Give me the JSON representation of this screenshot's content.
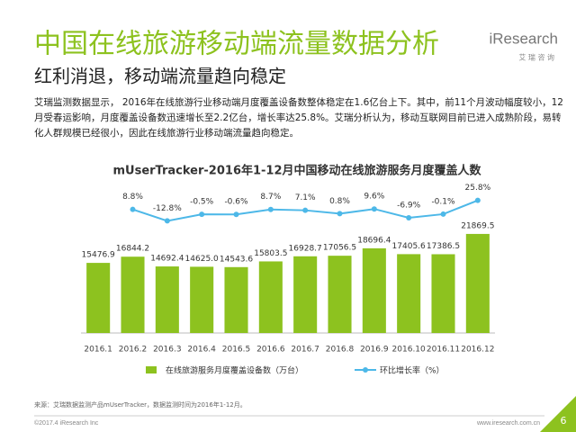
{
  "slide": {
    "title": "中国在线旅游移动端流量数据分析",
    "subtitle": "红利消退，移动端流量趋向稳定",
    "logo": "iResearch",
    "logo_sub": "艾 瑞 咨 询",
    "paragraph": "艾瑞监测数据显示， 2016年在线旅游行业移动端月度覆盖设备数整体稳定在1.6亿台上下。其中，前11个月波动幅度较小，12月受春运影响，月度覆盖设备数迅速增长至2.2亿台，增长率达25.8%。艾瑞分析认为，移动互联网目前已进入成熟阶段，易转化人群规模已经很小，因此在线旅游行业移动端流量趋向稳定。",
    "source": "来源：艾瑞数据监测产品mUserTracker，数据监测时间为2016年1-12月。",
    "copyright": "©2017.4 iResearch Inc",
    "website": "www.iresearch.com.cn",
    "page": "6"
  },
  "chart_data": {
    "type": "bar",
    "title": "mUserTracker-2016年1-12月中国移动在线旅游服务月度覆盖人数",
    "categories": [
      "2016.1",
      "2016.2",
      "2016.3",
      "2016.4",
      "2016.5",
      "2016.6",
      "2016.7",
      "2016.8",
      "2016.9",
      "2016.10",
      "2016.11",
      "2016.12"
    ],
    "series": [
      {
        "name": "在线旅游服务月度覆盖设备数（万台）",
        "type": "bar",
        "color": "#8dc21f",
        "values": [
          15476.9,
          16844.2,
          14692.4,
          14625.0,
          14543.6,
          15803.5,
          16928.7,
          17056.5,
          18696.4,
          17405.6,
          17386.5,
          21869.5
        ],
        "value_labels": [
          "15476.9",
          "16844.2",
          "14692.4",
          "14625.0",
          "14543.6",
          "15803.5",
          "16928.7",
          "17056.5",
          "18696.4",
          "17405.6",
          "17386.5",
          "21869.5"
        ]
      },
      {
        "name": "环比增长率（%）",
        "type": "line",
        "axis": "y2",
        "color": "#4db8e8",
        "values": [
          null,
          8.8,
          -12.8,
          -0.5,
          -0.6,
          8.7,
          7.1,
          0.8,
          9.6,
          -6.9,
          -0.1,
          25.8
        ],
        "value_labels": [
          null,
          "8.8%",
          "-12.8%",
          "-0.5%",
          "-0.6%",
          "8.7%",
          "7.1%",
          "0.8%",
          "9.6%",
          "-6.9%",
          "-0.1%",
          "25.8%"
        ]
      }
    ],
    "ylim": [
      0,
      30000
    ],
    "y2lim": [
      -224,
      32
    ]
  }
}
